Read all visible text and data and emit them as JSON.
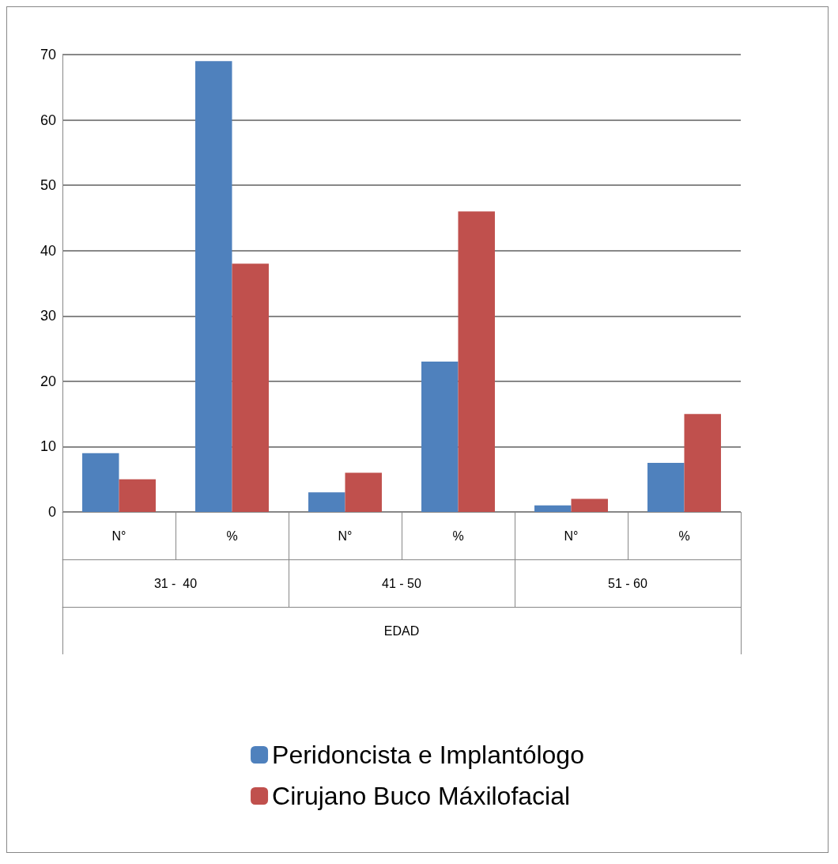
{
  "chart_data": {
    "type": "bar",
    "categories": [
      "N°",
      "%",
      "N°",
      "%",
      "N°",
      "%"
    ],
    "annotations": [
      "31 -  40",
      "41 - 50",
      "51 - 60",
      "EDAD"
    ],
    "series": [
      {
        "name": "Peridoncista e Implantólogo",
        "color": "#4f81bd",
        "values": [
          9,
          69,
          3,
          23,
          1,
          7.5
        ]
      },
      {
        "name": "Cirujano Buco Máxilofacial",
        "color": "#c0504d",
        "values": [
          5,
          38,
          6,
          46,
          2,
          15
        ]
      }
    ],
    "ylim": [
      0,
      70
    ],
    "yticks": [
      0,
      10,
      20,
      30,
      40,
      50,
      60,
      70
    ],
    "grid": "y",
    "legend": "bottom"
  }
}
